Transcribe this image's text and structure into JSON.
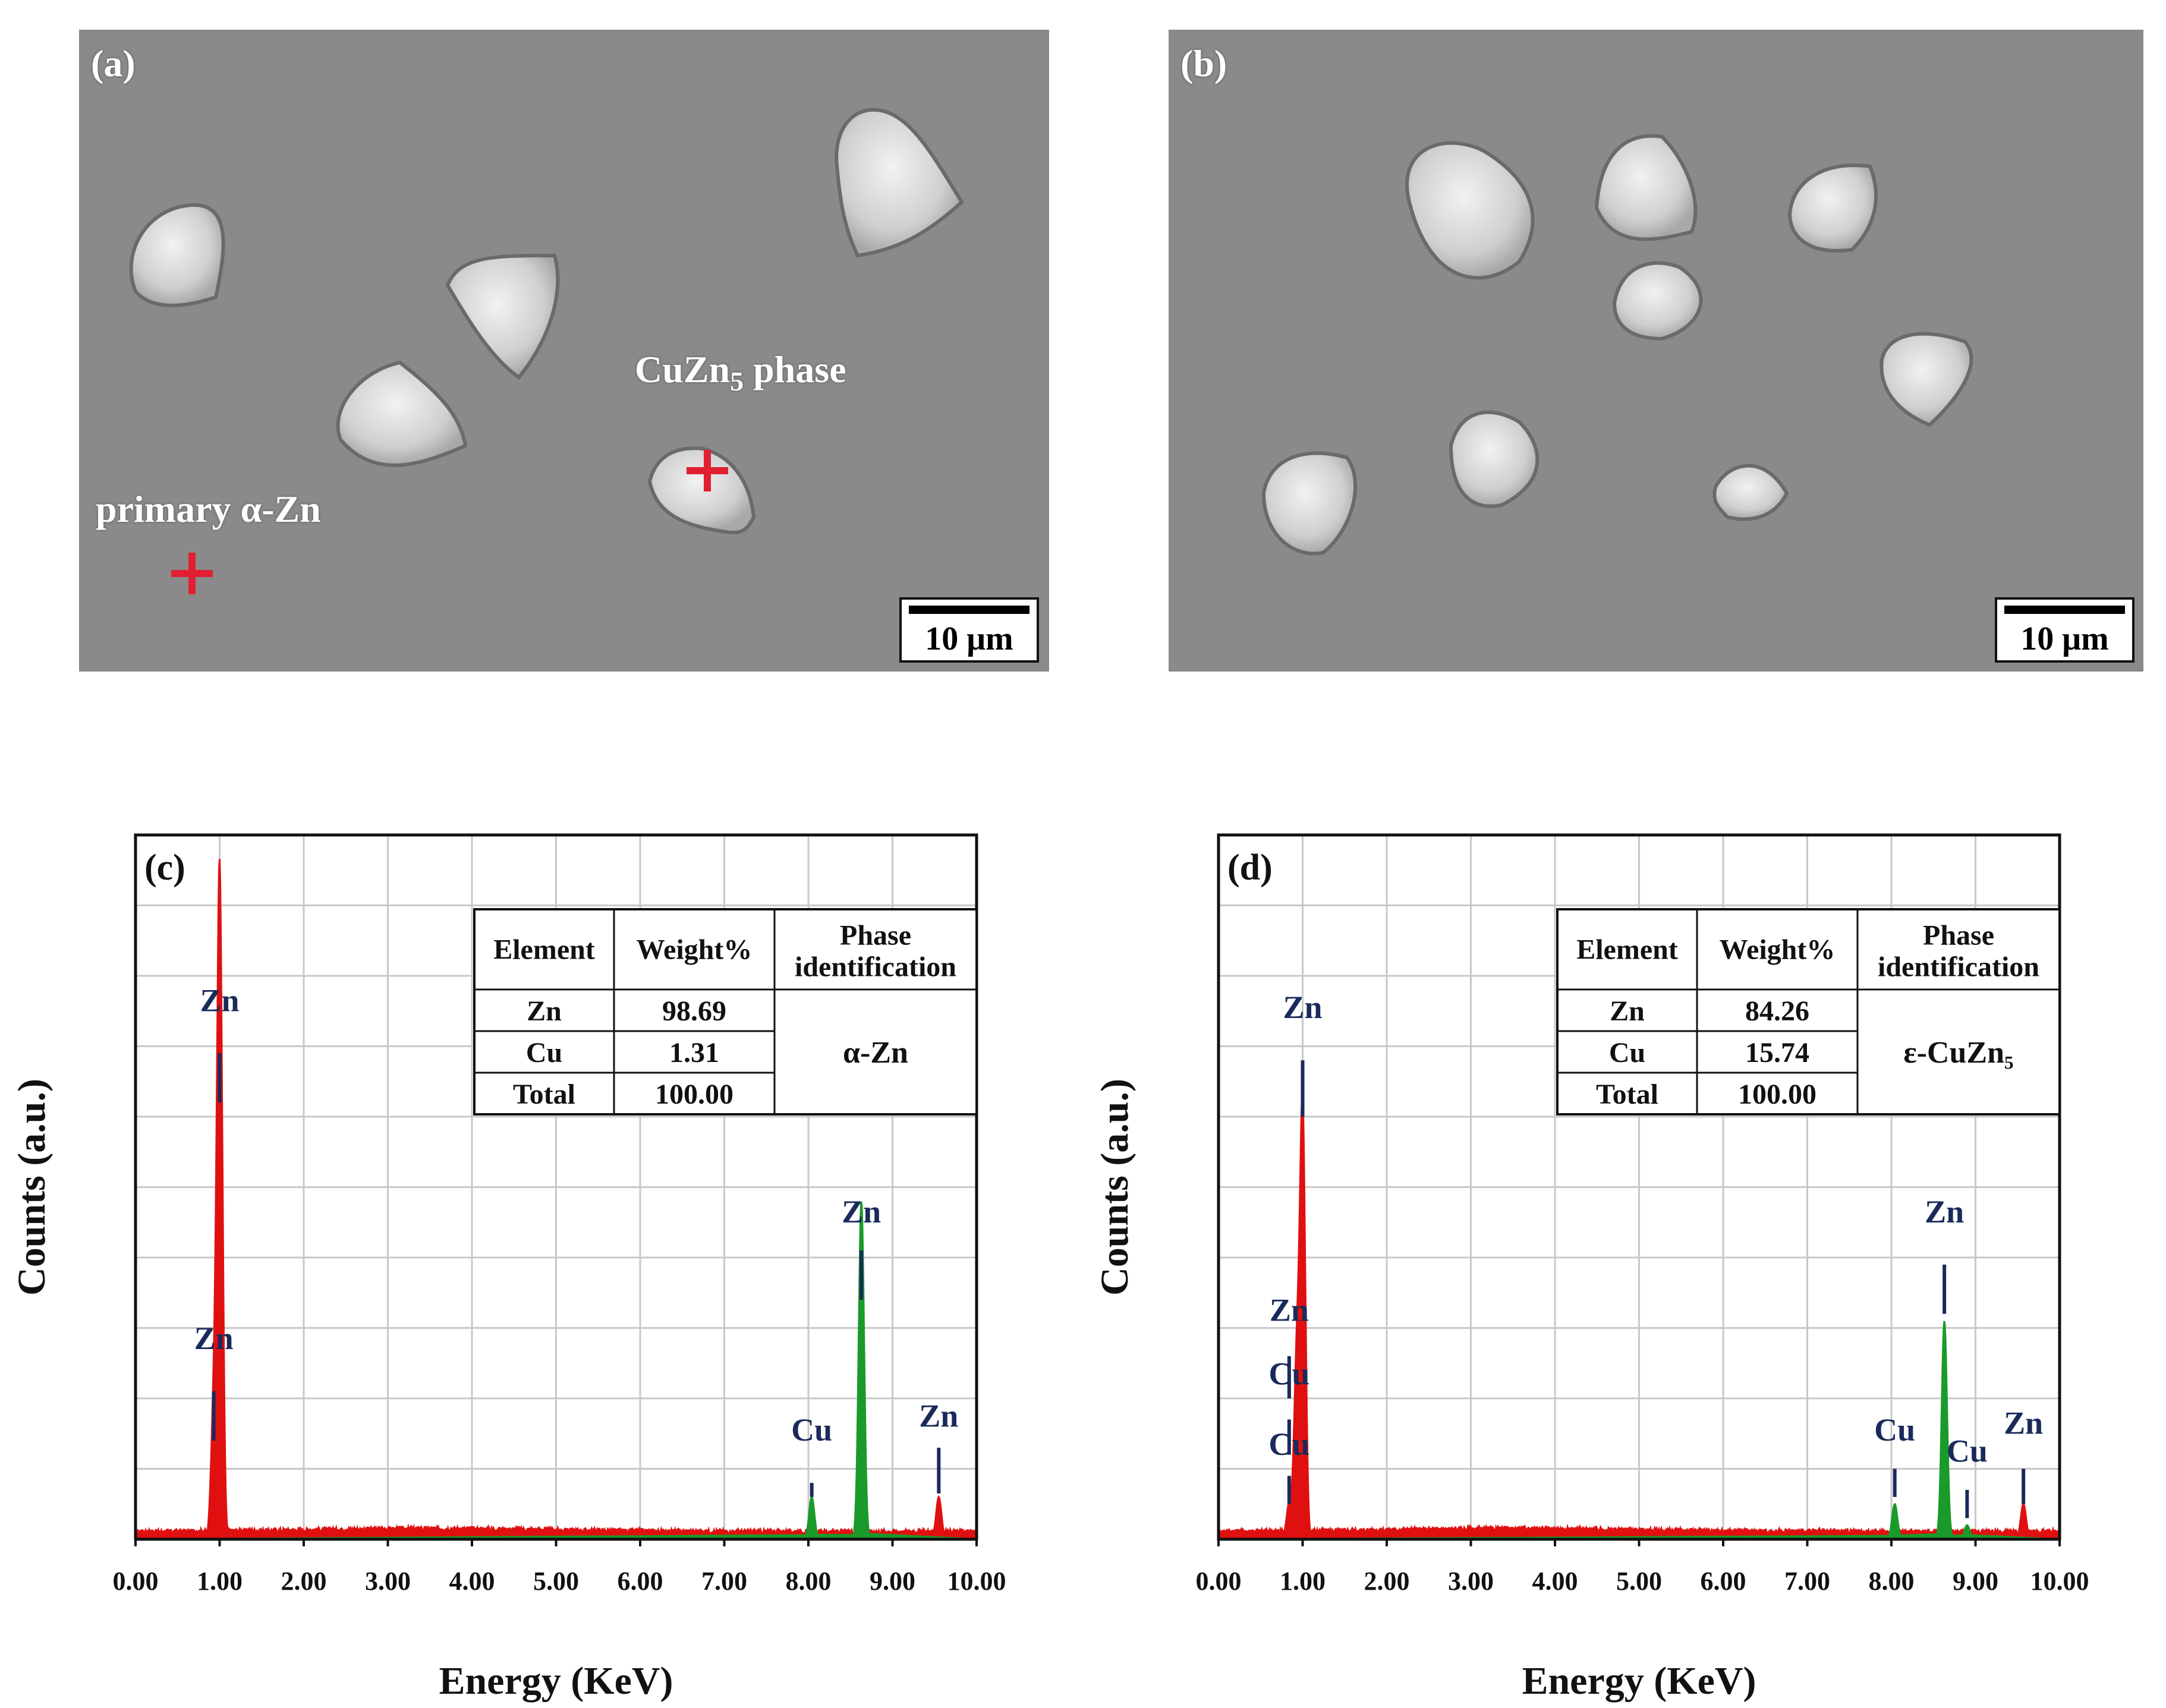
{
  "panels": {
    "a": {
      "label": "(a)",
      "annotations": {
        "cuzn5": "CuZn",
        "cuzn5_sub": "5",
        "cuzn5_rest": " phase",
        "primary": "primary α-Zn"
      },
      "scale_bar": "10 μm"
    },
    "b": {
      "label": "(b)",
      "scale_bar": "10 μm"
    }
  },
  "chart_data": [
    {
      "type": "line",
      "panel_label": "(c)",
      "xlabel": "Energy (KeV)",
      "ylabel": "Counts (a.u.)",
      "xlim": [
        0,
        10
      ],
      "x_ticks": [
        "0.00",
        "1.00",
        "2.00",
        "3.00",
        "4.00",
        "5.00",
        "6.00",
        "7.00",
        "8.00",
        "9.00",
        "10.00"
      ],
      "grid": true,
      "series": [
        {
          "color": "#e01010",
          "peaks": [
            {
              "x": 0.93,
              "h": 0.18
            },
            {
              "x": 1.0,
              "h": 0.95
            },
            {
              "x": 9.55,
              "h": 0.06
            }
          ]
        },
        {
          "color": "#1a9a2a",
          "peaks": [
            {
              "x": 8.04,
              "h": 0.06
            },
            {
              "x": 8.63,
              "h": 0.48
            }
          ]
        }
      ],
      "peak_labels": [
        {
          "text": "Zn",
          "x": 0.93,
          "label_y": 0.27,
          "line_top": 0.21,
          "line_bottom": 0.14
        },
        {
          "text": "Zn",
          "x": 1.0,
          "label_y": 0.75,
          "line_top": 0.69,
          "line_bottom": 0.62
        },
        {
          "text": "Cu",
          "x": 8.04,
          "label_y": 0.14,
          "line_top": 0.08,
          "line_bottom": 0.06
        },
        {
          "text": "Zn",
          "x": 8.63,
          "label_y": 0.45,
          "line_top": 0.41,
          "line_bottom": 0.34
        },
        {
          "text": "Zn",
          "x": 9.55,
          "label_y": 0.16,
          "line_top": 0.13,
          "line_bottom": 0.065
        }
      ],
      "table": {
        "headers": [
          "Element",
          "Weight%",
          "Phase identification"
        ],
        "rows": [
          [
            "Zn",
            "98.69"
          ],
          [
            "Cu",
            "1.31"
          ],
          [
            "Total",
            "100.00"
          ]
        ],
        "phase": "α-Zn"
      }
    },
    {
      "type": "line",
      "panel_label": "(d)",
      "xlabel": "Energy (KeV)",
      "ylabel": "Counts (a.u.)",
      "xlim": [
        0,
        10
      ],
      "x_ticks": [
        "0.00",
        "1.00",
        "2.00",
        "3.00",
        "4.00",
        "5.00",
        "6.00",
        "7.00",
        "8.00",
        "9.00",
        "10.00"
      ],
      "grid": true,
      "series": [
        {
          "color": "#e01010",
          "peaks": [
            {
              "x": 0.84,
              "h": 0.05
            },
            {
              "x": 0.93,
              "h": 0.25
            },
            {
              "x": 1.0,
              "h": 0.61
            },
            {
              "x": 9.57,
              "h": 0.05
            }
          ]
        },
        {
          "color": "#1a9a2a",
          "peaks": [
            {
              "x": 8.04,
              "h": 0.05
            },
            {
              "x": 8.63,
              "h": 0.31
            },
            {
              "x": 8.9,
              "h": 0.02
            }
          ]
        }
      ],
      "peak_labels": [
        {
          "text": "Cu",
          "x": 0.84,
          "label_y": 0.12,
          "line_top": 0.09,
          "line_bottom": 0.05
        },
        {
          "text": "Cu",
          "x": 0.84,
          "label_y": 0.22,
          "line_top": 0.17,
          "line_bottom": 0.12
        },
        {
          "text": "Zn",
          "x": 0.84,
          "label_y": 0.31,
          "line_top": 0.26,
          "line_bottom": 0.2
        },
        {
          "text": "Zn",
          "x": 1.0,
          "label_y": 0.74,
          "line_top": 0.68,
          "line_bottom": 0.6
        },
        {
          "text": "Cu",
          "x": 8.04,
          "label_y": 0.14,
          "line_top": 0.1,
          "line_bottom": 0.06
        },
        {
          "text": "Zn",
          "x": 8.63,
          "label_y": 0.45,
          "line_top": 0.39,
          "line_bottom": 0.32
        },
        {
          "text": "Cu",
          "x": 8.9,
          "label_y": 0.11,
          "line_top": 0.07,
          "line_bottom": 0.03
        },
        {
          "text": "Zn",
          "x": 9.57,
          "label_y": 0.15,
          "line_top": 0.1,
          "line_bottom": 0.05
        }
      ],
      "table": {
        "headers": [
          "Element",
          "Weight%",
          "Phase identification"
        ],
        "rows": [
          [
            "Zn",
            "84.26"
          ],
          [
            "Cu",
            "15.74"
          ],
          [
            "Total",
            "100.00"
          ]
        ],
        "phase": "ε-CuZn₅"
      }
    }
  ]
}
